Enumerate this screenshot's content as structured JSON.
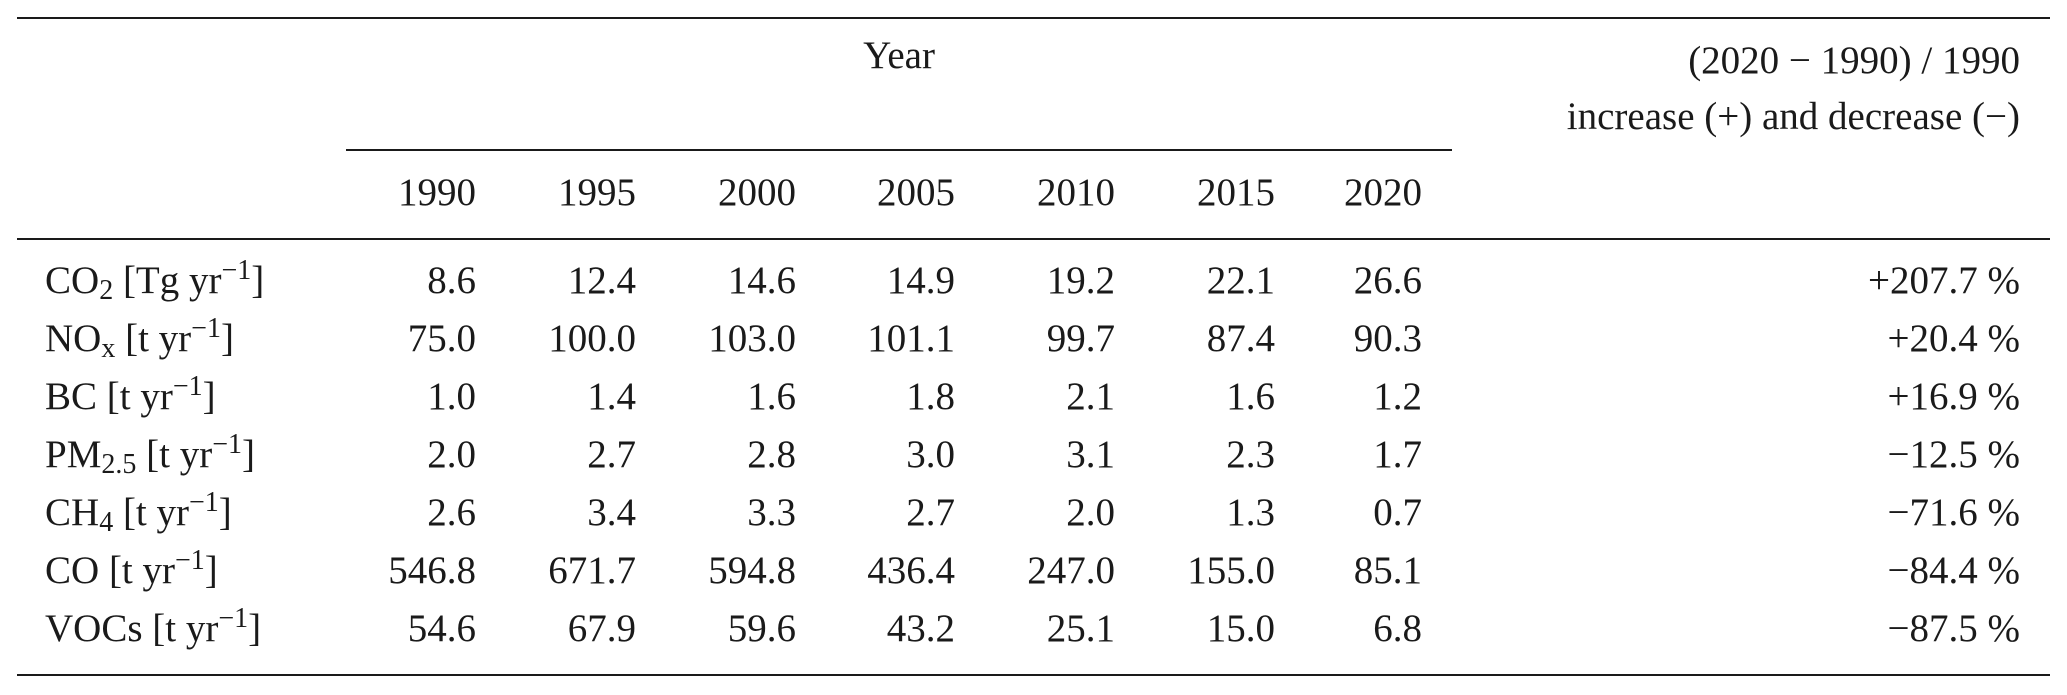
{
  "header": {
    "year_label": "Year",
    "change_line1": "(2020 − 1990) / 1990",
    "change_line2": "increase (+) and decrease (−)",
    "years": [
      "1990",
      "1995",
      "2000",
      "2005",
      "2010",
      "2015",
      "2020"
    ]
  },
  "rows": [
    {
      "species": "CO",
      "sub": "2",
      "unit_pre": " [Tg yr",
      "sup": "−1",
      "unit_post": "]",
      "values": [
        "8.6",
        "12.4",
        "14.6",
        "14.9",
        "19.2",
        "22.1",
        "26.6"
      ],
      "change": "+207.7 %"
    },
    {
      "species": "NO",
      "sub": "x",
      "unit_pre": " [t yr",
      "sup": "−1",
      "unit_post": "]",
      "values": [
        "75.0",
        "100.0",
        "103.0",
        "101.1",
        "99.7",
        "87.4",
        "90.3"
      ],
      "change": "+20.4 %"
    },
    {
      "species": "BC",
      "sub": "",
      "unit_pre": " [t yr",
      "sup": "−1",
      "unit_post": "]",
      "values": [
        "1.0",
        "1.4",
        "1.6",
        "1.8",
        "2.1",
        "1.6",
        "1.2"
      ],
      "change": "+16.9 %"
    },
    {
      "species": "PM",
      "sub": "2.5",
      "unit_pre": " [t yr",
      "sup": "−1",
      "unit_post": "]",
      "values": [
        "2.0",
        "2.7",
        "2.8",
        "3.0",
        "3.1",
        "2.3",
        "1.7"
      ],
      "change": "−12.5 %"
    },
    {
      "species": "CH",
      "sub": "4",
      "unit_pre": " [t yr",
      "sup": "−1",
      "unit_post": "]",
      "values": [
        "2.6",
        "3.4",
        "3.3",
        "2.7",
        "2.0",
        "1.3",
        "0.7"
      ],
      "change": "−71.6 %"
    },
    {
      "species": "CO",
      "sub": "",
      "unit_pre": " [t yr",
      "sup": "−1",
      "unit_post": "]",
      "values": [
        "546.8",
        "671.7",
        "594.8",
        "436.4",
        "247.0",
        "155.0",
        "85.1"
      ],
      "change": "−84.4 %"
    },
    {
      "species": "VOCs",
      "sub": "",
      "unit_pre": " [t yr",
      "sup": "−1",
      "unit_post": "]",
      "values": [
        "54.6",
        "67.9",
        "59.6",
        "43.2",
        "25.1",
        "15.0",
        "6.8"
      ],
      "change": "−87.5 %"
    }
  ]
}
